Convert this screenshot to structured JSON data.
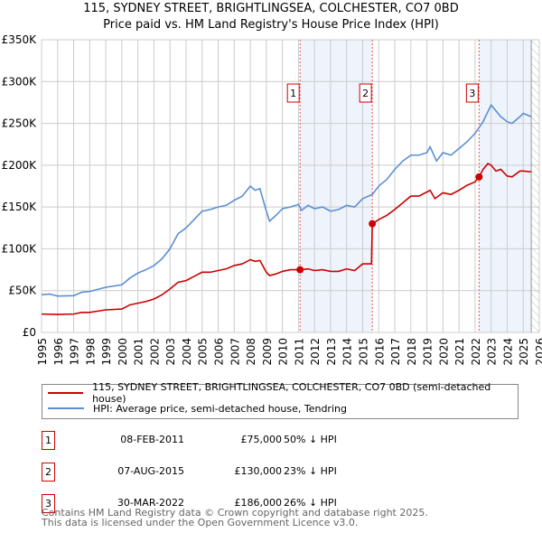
{
  "chart_data": {
    "type": "line",
    "title": "115, SYDNEY STREET, BRIGHTLINGSEA, COLCHESTER, CO7 0BD",
    "subtitle": "Price paid vs. HM Land Registry's House Price Index (HPI)",
    "xlim": [
      1995,
      2026
    ],
    "ylim": [
      0,
      350000
    ],
    "yticks": [
      {
        "v": 0,
        "label": "£0"
      },
      {
        "v": 50000,
        "label": "£50K"
      },
      {
        "v": 100000,
        "label": "£100K"
      },
      {
        "v": 150000,
        "label": "£150K"
      },
      {
        "v": 200000,
        "label": "£200K"
      },
      {
        "v": 250000,
        "label": "£250K"
      },
      {
        "v": 300000,
        "label": "£300K"
      },
      {
        "v": 350000,
        "label": "£350K"
      }
    ],
    "xticks": [
      "1995",
      "1996",
      "1997",
      "1998",
      "1999",
      "2000",
      "2001",
      "2002",
      "2003",
      "2004",
      "2005",
      "2006",
      "2007",
      "2008",
      "2009",
      "2010",
      "2011",
      "2012",
      "2013",
      "2014",
      "2015",
      "2016",
      "2017",
      "2018",
      "2019",
      "2020",
      "2021",
      "2022",
      "2023",
      "2024",
      "2025",
      "2026"
    ],
    "shaded_ranges": [
      [
        2011.1,
        2015.6
      ],
      [
        2022.25,
        2025.5
      ]
    ],
    "forecast_from": 2025.5,
    "series": [
      {
        "name": "115, SYDNEY STREET, BRIGHTLINGSEA, COLCHESTER, CO7 0BD (semi-detached house)",
        "color": "#cc0000",
        "x": [
          1995,
          1996,
          1997,
          1997.5,
          1998,
          1999,
          2000,
          2000.5,
          2001,
          2001.5,
          2002,
          2002.5,
          2003,
          2003.5,
          2004,
          2004.5,
          2005,
          2005.5,
          2006,
          2006.5,
          2007,
          2007.5,
          2008,
          2008.3,
          2008.6,
          2009,
          2009.2,
          2009.6,
          2010,
          2010.5,
          2011.1,
          2011.6,
          2012,
          2012.5,
          2013,
          2013.5,
          2014,
          2014.5,
          2015,
          2015.55,
          2015.6,
          2016,
          2016.5,
          2017,
          2017.5,
          2018,
          2018.5,
          2019,
          2019.2,
          2019.5,
          2020,
          2020.5,
          2021,
          2021.5,
          2022,
          2022.25,
          2022.5,
          2022.8,
          2023,
          2023.3,
          2023.6,
          2024,
          2024.3,
          2024.8,
          2025,
          2025.5
        ],
        "y": [
          22000,
          21500,
          22000,
          24000,
          24000,
          27000,
          28000,
          33000,
          35000,
          37000,
          40000,
          45000,
          52000,
          60000,
          62000,
          67000,
          72000,
          72000,
          74000,
          76000,
          80000,
          82000,
          87000,
          85000,
          86000,
          72000,
          68000,
          70000,
          73000,
          75000,
          75000,
          76000,
          74000,
          75000,
          73000,
          73000,
          76000,
          74000,
          82000,
          82000,
          130000,
          135000,
          140000,
          147000,
          155000,
          163000,
          163000,
          168000,
          170000,
          160000,
          167000,
          165000,
          170000,
          176000,
          180000,
          186000,
          195000,
          202000,
          200000,
          193000,
          195000,
          187000,
          186000,
          193000,
          193000,
          192000
        ]
      },
      {
        "name": "HPI: Average price, semi-detached house, Tendring",
        "color": "#5b8fd4",
        "x": [
          1995,
          1995.5,
          1996,
          1997,
          1997.5,
          1998,
          1999,
          2000,
          2000.5,
          2001,
          2001.5,
          2002,
          2002.5,
          2003,
          2003.5,
          2004,
          2004.5,
          2005,
          2005.5,
          2006,
          2006.5,
          2007,
          2007.5,
          2008,
          2008.3,
          2008.6,
          2009,
          2009.2,
          2009.6,
          2010,
          2010.5,
          2011,
          2011.2,
          2011.6,
          2012,
          2012.5,
          2013,
          2013.5,
          2014,
          2014.5,
          2015,
          2015.6,
          2016,
          2016.5,
          2017,
          2017.5,
          2018,
          2018.5,
          2019,
          2019.2,
          2019.6,
          2020,
          2020.5,
          2021,
          2021.5,
          2022,
          2022.5,
          2023,
          2023.3,
          2023.6,
          2024,
          2024.3,
          2024.8,
          2025,
          2025.5
        ],
        "y": [
          45000,
          46000,
          43500,
          44000,
          48000,
          49000,
          54000,
          57000,
          65000,
          71000,
          75000,
          80000,
          88000,
          100000,
          118000,
          125000,
          135000,
          145000,
          147000,
          150000,
          152000,
          158000,
          163000,
          175000,
          170000,
          172000,
          145000,
          133000,
          140000,
          148000,
          150000,
          153000,
          146000,
          152000,
          148000,
          150000,
          145000,
          147000,
          152000,
          150000,
          160000,
          165000,
          175000,
          183000,
          195000,
          205000,
          212000,
          212000,
          215000,
          222000,
          205000,
          215000,
          212000,
          220000,
          228000,
          238000,
          252000,
          272000,
          265000,
          258000,
          252000,
          250000,
          258000,
          262000,
          258000
        ]
      }
    ],
    "sales": [
      {
        "num": "1",
        "x": 2011.1,
        "price": 75000,
        "date": "08-FEB-2011",
        "price_label": "£75,000",
        "hpi": "50% ↓ HPI"
      },
      {
        "num": "2",
        "x": 2015.6,
        "price": 130000,
        "date": "07-AUG-2015",
        "price_label": "£130,000",
        "hpi": "23% ↓ HPI"
      },
      {
        "num": "3",
        "x": 2022.25,
        "price": 186000,
        "date": "30-MAR-2022",
        "price_label": "£186,000",
        "hpi": "26% ↓ HPI"
      }
    ]
  },
  "footer": {
    "line1": "Contains HM Land Registry data © Crown copyright and database right 2025.",
    "line2": "This data is licensed under the Open Government Licence v3.0."
  }
}
